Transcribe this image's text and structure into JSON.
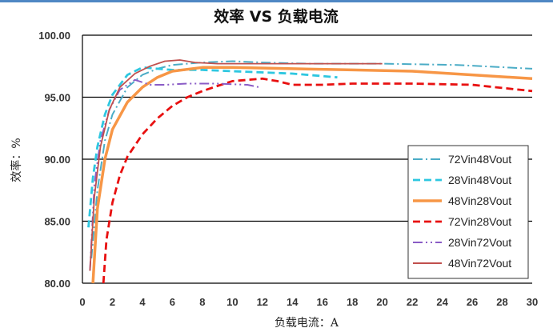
{
  "chart_data": {
    "type": "line",
    "title": "效率 VS 负载电流",
    "xlabel": "负载电流：A",
    "ylabel": "效率：%",
    "xlim": [
      0,
      30
    ],
    "ylim": [
      80,
      100
    ],
    "x_ticks": [
      "0",
      "2",
      "4",
      "6",
      "8",
      "10",
      "12",
      "14",
      "16",
      "18",
      "20",
      "22",
      "24",
      "26",
      "28",
      "30"
    ],
    "y_ticks": [
      "80.00",
      "85.00",
      "90.00",
      "95.00",
      "100.00"
    ],
    "grid": "horizontal",
    "legend_position": "right",
    "series": [
      {
        "name": "72Vin48Vout",
        "color": "#4bacc6",
        "dash": "dashdot",
        "x": [
          0.6,
          1.0,
          1.5,
          2.0,
          3.0,
          4.0,
          5.0,
          6.0,
          8.0,
          10.0,
          12.0,
          15.0,
          20.0,
          25.0,
          30.0
        ],
        "y": [
          82.0,
          87.5,
          91.5,
          93.6,
          95.8,
          96.8,
          97.3,
          97.6,
          97.8,
          97.9,
          97.8,
          97.7,
          97.7,
          97.6,
          97.3
        ]
      },
      {
        "name": "28Vin48Vout",
        "color": "#2ec7e0",
        "dash": "dash",
        "x": [
          0.4,
          0.7,
          1.0,
          1.5,
          2.0,
          3.0,
          4.0,
          5.0,
          6.0,
          8.0,
          10.0,
          12.0,
          14.0,
          16.0,
          17.0
        ],
        "y": [
          84.5,
          88.5,
          91.0,
          93.6,
          95.2,
          96.8,
          97.4,
          97.3,
          97.2,
          97.2,
          97.1,
          97.0,
          96.9,
          96.7,
          96.6
        ]
      },
      {
        "name": "48Vin28Vout",
        "color": "#f79646",
        "dash": "solid",
        "x": [
          0.7,
          1.0,
          1.5,
          2.0,
          3.0,
          4.0,
          5.0,
          6.0,
          8.0,
          10.0,
          14.0,
          18.0,
          22.0,
          26.0,
          30.0
        ],
        "y": [
          80.0,
          86.0,
          90.0,
          92.4,
          94.6,
          95.8,
          96.6,
          97.1,
          97.4,
          97.4,
          97.3,
          97.2,
          97.1,
          96.8,
          96.5
        ]
      },
      {
        "name": "72Vin28Vout",
        "color": "#e81010",
        "dash": "dash",
        "x": [
          1.4,
          1.6,
          2.0,
          2.5,
          3.0,
          4.0,
          5.0,
          6.0,
          7.0,
          8.0,
          9.0,
          10.0,
          12.0,
          13.0,
          14.0,
          16.0,
          18.0,
          22.0,
          26.0,
          30.0
        ],
        "y": [
          80.0,
          83.5,
          86.5,
          88.7,
          90.2,
          92.0,
          93.3,
          94.3,
          95.0,
          95.5,
          95.9,
          96.3,
          96.5,
          96.3,
          96.0,
          96.0,
          96.1,
          96.1,
          96.0,
          95.5
        ]
      },
      {
        "name": "28Vin72Vout",
        "color": "#8a5cc6",
        "dash": "dashdotdot",
        "x": [
          0.5,
          0.8,
          1.2,
          1.8,
          2.5,
          3.5,
          4.5,
          5.5,
          7.0,
          9.0,
          11.0,
          11.8
        ],
        "y": [
          81.0,
          88.0,
          91.5,
          94.0,
          95.6,
          96.4,
          96.0,
          96.0,
          96.1,
          96.1,
          96.0,
          95.8
        ]
      },
      {
        "name": "48Vin72Vout",
        "color": "#c0504d",
        "dash": "solid",
        "x": [
          0.5,
          0.8,
          1.2,
          1.8,
          2.5,
          3.5,
          4.5,
          5.5,
          6.5,
          7.5,
          9.0,
          12.0,
          16.0,
          20.0
        ],
        "y": [
          81.0,
          87.0,
          91.0,
          94.0,
          95.8,
          96.9,
          97.5,
          97.9,
          98.0,
          97.8,
          97.7,
          97.7,
          97.7,
          97.7
        ]
      }
    ]
  }
}
